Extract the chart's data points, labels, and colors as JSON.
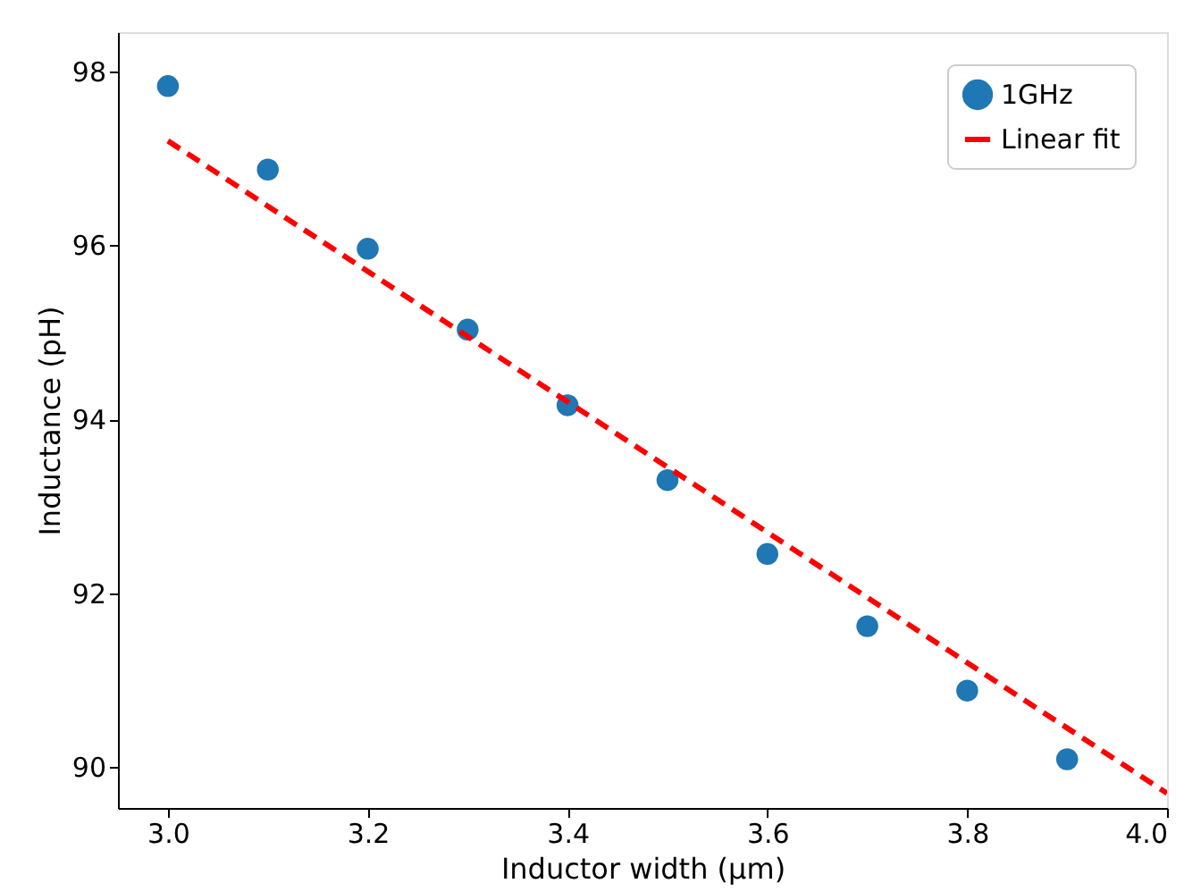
{
  "chart_data": {
    "type": "scatter",
    "xlabel": "Inductor width (μm)",
    "ylabel": "Inductance (pH)",
    "x": [
      3.0,
      3.1,
      3.2,
      3.3,
      3.4,
      3.5,
      3.6,
      3.7,
      3.8,
      3.9
    ],
    "series": [
      {
        "name": "1GHz",
        "color": "#1f77b4",
        "marker": "circle",
        "values": [
          97.83,
          96.87,
          95.96,
          95.03,
          94.16,
          93.3,
          92.45,
          91.62,
          90.88,
          90.09
        ]
      },
      {
        "name": "Linear fit",
        "type": "line",
        "color": "#ff0000",
        "line_style": "dashed",
        "x": [
          3.0,
          4.0
        ],
        "values": [
          97.2,
          89.7
        ]
      }
    ],
    "xlim": [
      2.95,
      4.0
    ],
    "xticks": [
      {
        "value": 3,
        "label": "3.0"
      },
      3.2,
      3.4,
      3.6,
      3.8,
      {
        "value": 4,
        "label": "4.0"
      }
    ],
    "ylim": [
      89.53,
      98.45
    ],
    "yticks": [
      90,
      92,
      94,
      96,
      98
    ],
    "legend": "top right",
    "grid": false
  }
}
